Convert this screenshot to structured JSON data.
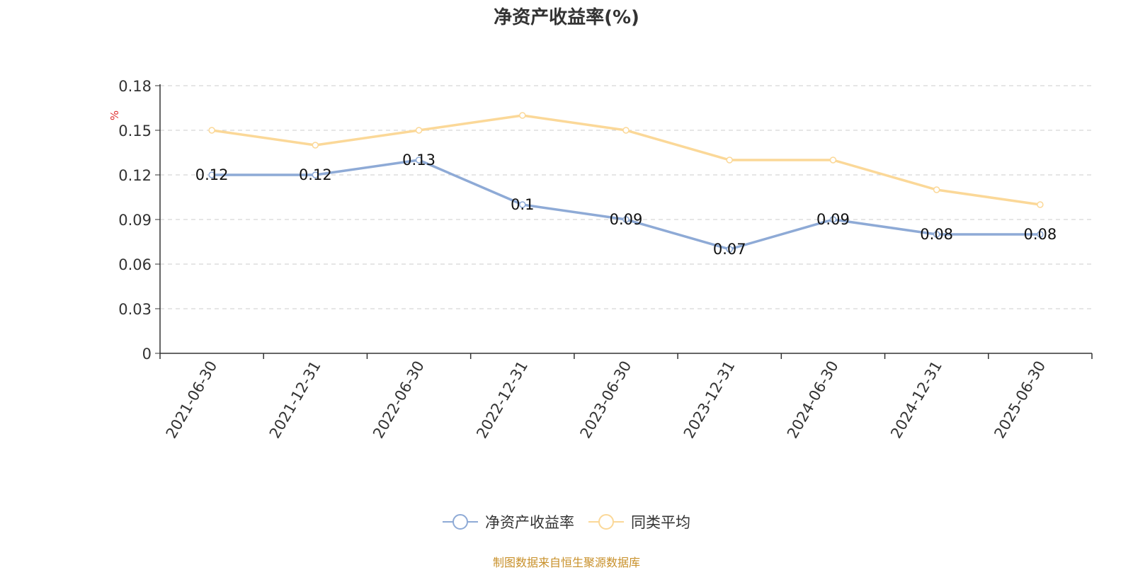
{
  "title": "净资产收益率(%)",
  "source": "制图数据来自恒生聚源数据库",
  "chart_data": {
    "type": "line",
    "title": "净资产收益率(%)",
    "ylabel": "%",
    "xlabel": "",
    "ylim": [
      0,
      0.18
    ],
    "yticks": [
      "0",
      "0.03",
      "0.06",
      "0.09",
      "0.12",
      "0.15",
      "0.18"
    ],
    "grid": true,
    "legend_position": "bottom",
    "categories": [
      "2021-06-30",
      "2021-12-31",
      "2022-06-30",
      "2022-12-31",
      "2023-06-30",
      "2023-12-31",
      "2024-06-30",
      "2024-12-31",
      "2025-06-30"
    ],
    "series": [
      {
        "name": "净资产收益率",
        "color": "#8eaad6",
        "values": [
          0.12,
          0.12,
          0.13,
          0.1,
          0.09,
          0.07,
          0.09,
          0.08,
          0.08
        ],
        "labels": [
          "0.12",
          "0.12",
          "0.13",
          "0.1",
          "0.09",
          "0.07",
          "0.09",
          "0.08",
          "0.08"
        ]
      },
      {
        "name": "同类平均",
        "color": "#fbd898",
        "values": [
          0.15,
          0.14,
          0.15,
          0.16,
          0.15,
          0.13,
          0.13,
          0.11,
          0.1
        ]
      }
    ]
  }
}
